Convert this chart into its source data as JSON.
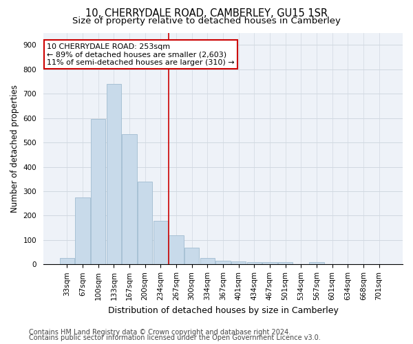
{
  "title1": "10, CHERRYDALE ROAD, CAMBERLEY, GU15 1SR",
  "title2": "Size of property relative to detached houses in Camberley",
  "xlabel": "Distribution of detached houses by size in Camberley",
  "ylabel": "Number of detached properties",
  "bar_color": "#c8daea",
  "bar_edge_color": "#a0bcd0",
  "categories": [
    "33sqm",
    "67sqm",
    "100sqm",
    "133sqm",
    "167sqm",
    "200sqm",
    "234sqm",
    "267sqm",
    "300sqm",
    "334sqm",
    "367sqm",
    "401sqm",
    "434sqm",
    "467sqm",
    "501sqm",
    "534sqm",
    "567sqm",
    "601sqm",
    "634sqm",
    "668sqm",
    "701sqm"
  ],
  "values": [
    25,
    275,
    595,
    740,
    535,
    340,
    180,
    118,
    68,
    25,
    15,
    12,
    9,
    8,
    8,
    0,
    8,
    0,
    0,
    0,
    0
  ],
  "ylim": [
    0,
    950
  ],
  "yticks": [
    0,
    100,
    200,
    300,
    400,
    500,
    600,
    700,
    800,
    900
  ],
  "vline_x": 6.5,
  "annotation_text": "10 CHERRYDALE ROAD: 253sqm\n← 89% of detached houses are smaller (2,603)\n11% of semi-detached houses are larger (310) →",
  "annotation_box_color": "#ffffff",
  "annotation_box_edge": "#cc0000",
  "vline_color": "#cc0000",
  "footer1": "Contains HM Land Registry data © Crown copyright and database right 2024.",
  "footer2": "Contains public sector information licensed under the Open Government Licence v3.0.",
  "plot_bg_color": "#eef2f8",
  "fig_bg_color": "#ffffff",
  "grid_color": "#d0d8e0",
  "title1_fontsize": 10.5,
  "title2_fontsize": 9.5,
  "xlabel_fontsize": 9,
  "ylabel_fontsize": 8.5,
  "tick_fontsize": 7.5,
  "footer_fontsize": 7,
  "ann_fontsize": 8
}
